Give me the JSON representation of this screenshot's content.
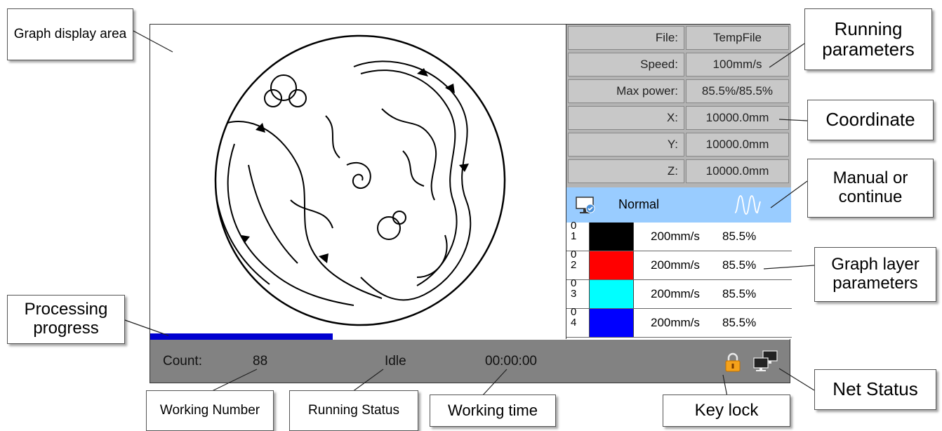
{
  "callouts": {
    "graph_display_area": "Graph display area",
    "running_parameters": "Running parameters",
    "coordinate": "Coordinate",
    "manual_or_continue": "Manual or continue",
    "graph_layer_parameters": "Graph layer parameters",
    "processing_progress": "Processing progress",
    "working_number": "Working Number",
    "running_status": "Running Status",
    "working_time": "Working time",
    "key_lock": "Key lock",
    "net_status": "Net Status"
  },
  "params": [
    {
      "label": "File:",
      "value": "TempFile"
    },
    {
      "label": "Speed:",
      "value": "100mm/s"
    },
    {
      "label": "Max power:",
      "value": "85.5%/85.5%"
    },
    {
      "label": "X:",
      "value": "10000.0mm"
    },
    {
      "label": "Y:",
      "value": "10000.0mm"
    },
    {
      "label": "Z:",
      "value": "10000.0mm"
    }
  ],
  "mode": {
    "label": "Normal",
    "left_icon": "monitor-check-icon",
    "right_icon": "wave-icon",
    "bar_color": "#99ccff"
  },
  "layers": [
    {
      "num_top": "0",
      "num_bottom": "1",
      "color": "#000000",
      "speed": "200mm/s",
      "power": "85.5%"
    },
    {
      "num_top": "0",
      "num_bottom": "2",
      "color": "#ff0000",
      "speed": "200mm/s",
      "power": "85.5%"
    },
    {
      "num_top": "0",
      "num_bottom": "3",
      "color": "#00ffff",
      "speed": "200mm/s",
      "power": "85.5%"
    },
    {
      "num_top": "0",
      "num_bottom": "4",
      "color": "#0000ff",
      "speed": "200mm/s",
      "power": "85.5%"
    }
  ],
  "progress": {
    "fraction": 0.44,
    "color": "#0000d0"
  },
  "status_bar": {
    "count_label": "Count:",
    "count_value": "88",
    "running_status": "Idle",
    "working_time": "00:00:00",
    "lock_icon": "padlock-icon",
    "net_icon": "network-computers-icon",
    "bar_color": "#828282"
  }
}
